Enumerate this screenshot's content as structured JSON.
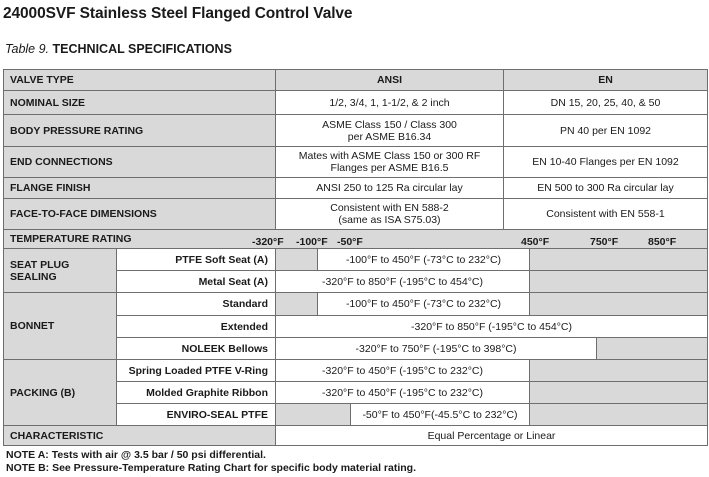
{
  "title": "24000SVF Stainless Steel Flanged Control Valve",
  "table_label": "Table 9.",
  "table_title": "TECHNICAL SPECIFICATIONS",
  "header": {
    "col1": "VALVE TYPE",
    "col2": "ANSI",
    "col3": "EN"
  },
  "rows": {
    "nominal_size": {
      "label": "NOMINAL SIZE",
      "ansi": "1/2, 3/4, 1, 1-1/2,  & 2 inch",
      "en": "DN 15, 20, 25, 40, & 50"
    },
    "body_pressure": {
      "label": "BODY PRESSURE RATING",
      "ansi_l1": "ASME Class 150 / Class 300",
      "ansi_l2": "per ASME B16.34",
      "en": "PN 40 per EN 1092"
    },
    "end_connections": {
      "label": "END CONNECTIONS",
      "ansi_l1": "Mates with ASME Class 150 or 300 RF",
      "ansi_l2": "Flanges per ASME B16.5",
      "en": "EN 10-40 Flanges per EN 1092"
    },
    "flange_finish": {
      "label": "FLANGE FINISH",
      "ansi": "ANSI 250 to 125 Ra circular lay",
      "en": "EN 500 to 300 Ra circular lay"
    },
    "face_to_face": {
      "label": "FACE-TO-FACE DIMENSIONS",
      "ansi_l1": "Consistent with EN 588-2",
      "ansi_l2": "(same as ISA S75.03)",
      "en": "Consistent with EN 558-1"
    }
  },
  "temperature_rating": {
    "label": "TEMPERATURE RATING",
    "ticks": [
      "-320°F",
      "-100°F",
      "-50°F",
      "450°F",
      "750°F",
      "850°F"
    ]
  },
  "seat_plug": {
    "label_l1": "SEAT PLUG",
    "label_l2": "SEALING",
    "ptfe_label": "PTFE Soft Seat (A)",
    "ptfe_range": "-100°F to 450°F (-73°C to 232°C)",
    "metal_label": "Metal Seat (A)",
    "metal_range": "-320°F to 850°F (-195°C to 454°C)"
  },
  "bonnet": {
    "label": "BONNET",
    "standard_label": "Standard",
    "standard_range": "-100°F to 450°F (-73°C to 232°C)",
    "extended_label": "Extended",
    "extended_range": "-320°F to 850°F (-195°C to 454°C)",
    "noleek_label": "NOLEEK Bellows",
    "noleek_range": "-320°F to 750°F (-195°C to 398°C)"
  },
  "packing": {
    "label": "PACKING (B)",
    "spring_label": "Spring Loaded PTFE V-Ring",
    "spring_range": "-320°F to 450°F (-195°C to 232°C)",
    "graphite_label": "Molded Graphite Ribbon",
    "graphite_range": "-320°F to 450°F (-195°C to 232°C)",
    "enviro_label": "ENVIRO-SEAL PTFE",
    "enviro_range": "-50°F to 450°F(-45.5°C to 232°C)"
  },
  "characteristic": {
    "label": "CHARACTERISTIC",
    "value": "Equal Percentage or Linear"
  },
  "notes": [
    "NOTE A: Tests with air @ 3.5 bar / 50 psi differential.",
    "NOTE B: See Pressure-Temperature Rating Chart for specific body material rating."
  ],
  "colors": {
    "header_fill": "#d9d9d9",
    "grid": "#6e6e6e",
    "text": "#1a1a1a"
  }
}
